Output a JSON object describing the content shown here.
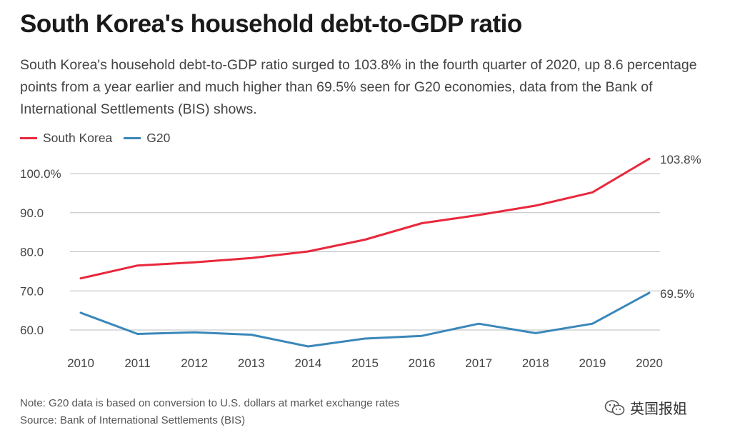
{
  "title": "South Korea's household debt-to-GDP ratio",
  "subtitle": "South Korea's household debt-to-GDP ratio surged to 103.8% in the fourth quarter of 2020, up 8.6 percentage points from a year earlier and much higher than 69.5% seen for G20 economies, data from the Bank of International Settlements (BIS) shows.",
  "legend": [
    {
      "label": "South Korea",
      "color": "#e8283c"
    },
    {
      "label": "G20",
      "color": "#3a87b9"
    }
  ],
  "notes": {
    "note": "Note: G20 data is based on conversion to U.S. dollars at market exchange rates",
    "source": "Source: Bank of International Settlements (BIS)"
  },
  "watermark": {
    "text": "英国报姐",
    "icon": "wechat-icon"
  },
  "chart_data": {
    "type": "line",
    "x": [
      "2010",
      "2011",
      "2012",
      "2013",
      "2014",
      "2015",
      "2016",
      "2017",
      "2018",
      "2019",
      "2020"
    ],
    "series": [
      {
        "name": "South Korea",
        "color": "#e8283c",
        "values": [
          73.2,
          76.5,
          77.3,
          78.4,
          80.1,
          83.1,
          87.3,
          89.4,
          91.8,
          95.2,
          103.8
        ]
      },
      {
        "name": "G20",
        "color": "#3a87b9",
        "values": [
          64.4,
          59.0,
          59.4,
          58.8,
          55.8,
          57.8,
          58.5,
          61.6,
          59.2,
          61.6,
          69.5
        ]
      }
    ],
    "end_labels": [
      "103.8%",
      "69.5%"
    ],
    "yticks": [
      "100.0%",
      "90.0",
      "80.0",
      "70.0",
      "60.0"
    ],
    "ytick_values": [
      100,
      90,
      80,
      70,
      60
    ],
    "ylim": [
      54,
      105
    ],
    "grid": true,
    "legend_position": "top-left"
  }
}
